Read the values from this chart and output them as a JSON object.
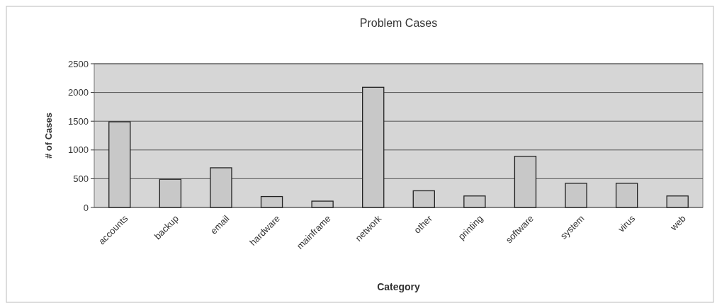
{
  "chart_data": {
    "type": "bar",
    "title": "Problem Cases",
    "xlabel": "Category",
    "ylabel": "# of Cases",
    "categories": [
      "accounts",
      "backup",
      "email",
      "hardware",
      "mainframe",
      "network",
      "other",
      "printing",
      "software",
      "system",
      "virus",
      "web"
    ],
    "values": [
      1490,
      490,
      690,
      190,
      110,
      2090,
      290,
      200,
      890,
      420,
      420,
      200
    ],
    "color": "#c8c8c8",
    "ylim": [
      0,
      2500
    ],
    "yticks": [
      0,
      500,
      1000,
      1500,
      2000,
      2500
    ],
    "grid": "y"
  }
}
